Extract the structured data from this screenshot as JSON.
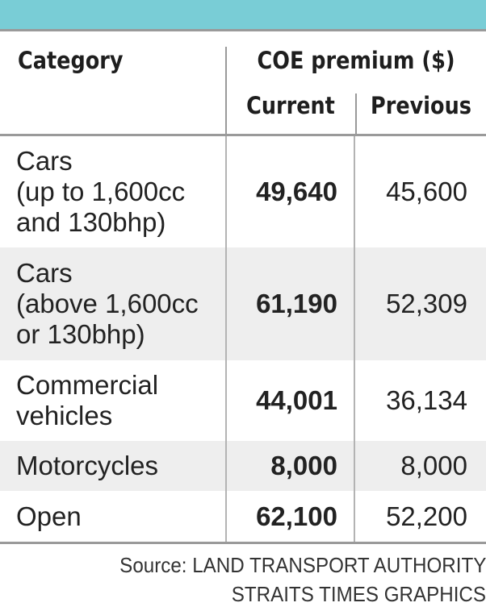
{
  "table": {
    "header": {
      "category": "Category",
      "group": "COE premium ($)",
      "current": "Current",
      "previous": "Previous"
    },
    "rows": [
      {
        "category": "Cars\n(up to 1,600cc\nand 130bhp)",
        "current": "49,640",
        "previous": "45,600"
      },
      {
        "category": "Cars\n(above 1,600cc\nor 130bhp)",
        "current": "61,190",
        "previous": "52,309"
      },
      {
        "category": "Commercial\nvehicles",
        "current": "44,001",
        "previous": "36,134"
      },
      {
        "category": "Motorcycles",
        "current": "8,000",
        "previous": "8,000"
      },
      {
        "category": "Open",
        "current": "62,100",
        "previous": "52,200"
      }
    ]
  },
  "footer": {
    "source": "Source: LAND TRANSPORT AUTHORITY",
    "credit": "STRAITS TIMES GRAPHICS"
  },
  "colors": {
    "accent_bar": "#79cdd6",
    "row_alt": "#eeeeee",
    "rule": "#9a9a9a"
  }
}
